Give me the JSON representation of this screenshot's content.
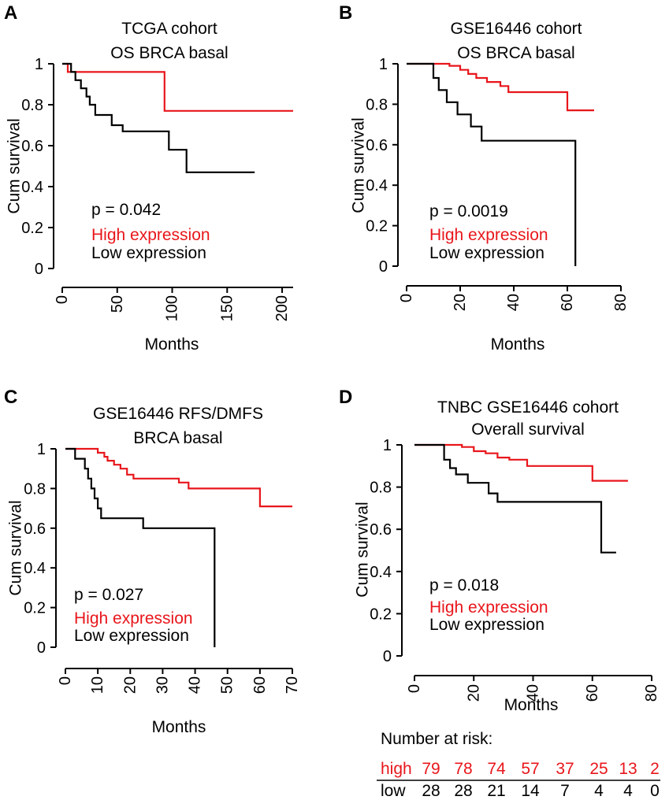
{
  "figure": {
    "risk_table": {
      "title": "Number at risk:",
      "high_label": "high",
      "low_label": "low",
      "high_values": [
        79,
        78,
        74,
        57,
        37,
        25,
        13,
        2
      ],
      "low_values": [
        28,
        28,
        21,
        14,
        7,
        4,
        4,
        0
      ]
    }
  },
  "colors": {
    "high": "#e8161b",
    "low": "#000000",
    "axis": "#000000"
  },
  "chart_data": [
    {
      "panel": "A",
      "type": "line",
      "title": [
        "TCGA cohort",
        "OS BRCA basal"
      ],
      "xlabel": "Months",
      "ylabel": "Cum survival",
      "xlim": [
        0,
        210
      ],
      "ylim": [
        0,
        1
      ],
      "xticks": [
        0,
        50,
        100,
        150,
        200
      ],
      "yticks": [
        0,
        0.2,
        0.4,
        0.6,
        0.8,
        1
      ],
      "ytick_labels": [
        "0",
        "0.2",
        "0.4",
        "0.6",
        "0.8",
        "1"
      ],
      "pvalue": "p = 0.042",
      "legend": [
        "High expression",
        "Low expression"
      ],
      "series": [
        {
          "name": "High expression",
          "x": [
            0,
            5,
            5,
            10,
            10,
            93,
            93,
            210
          ],
          "y": [
            1,
            1,
            0.96,
            0.96,
            0.96,
            0.96,
            0.77,
            0.77
          ]
        },
        {
          "name": "Low expression",
          "x": [
            0,
            8,
            8,
            12,
            12,
            17,
            17,
            22,
            22,
            25,
            25,
            30,
            30,
            45,
            45,
            55,
            55,
            97,
            97,
            113,
            113,
            175
          ],
          "y": [
            1,
            1,
            0.96,
            0.96,
            0.92,
            0.92,
            0.88,
            0.88,
            0.84,
            0.84,
            0.8,
            0.8,
            0.75,
            0.75,
            0.7,
            0.7,
            0.67,
            0.67,
            0.58,
            0.58,
            0.47,
            0.47
          ]
        }
      ]
    },
    {
      "panel": "B",
      "type": "line",
      "title": [
        "GSE16446 cohort",
        "OS BRCA basal"
      ],
      "xlabel": "Months",
      "ylabel": "Cum survival",
      "xlim": [
        0,
        80
      ],
      "ylim": [
        0,
        1
      ],
      "xticks": [
        0,
        20,
        40,
        60,
        80
      ],
      "yticks": [
        0,
        0.2,
        0.4,
        0.6,
        0.8,
        1
      ],
      "ytick_labels": [
        "0",
        "0.2",
        "0.4",
        "0.6",
        "0.8",
        "1"
      ],
      "pvalue": "p = 0.0019",
      "legend": [
        "High expression",
        "Low expression"
      ],
      "series": [
        {
          "name": "High expression",
          "x": [
            0,
            16,
            16,
            20,
            20,
            23,
            23,
            26,
            26,
            30,
            30,
            35,
            35,
            38,
            38,
            50,
            50,
            60,
            60,
            70
          ],
          "y": [
            1,
            1,
            0.99,
            0.99,
            0.97,
            0.97,
            0.95,
            0.95,
            0.93,
            0.93,
            0.91,
            0.91,
            0.89,
            0.89,
            0.86,
            0.86,
            0.86,
            0.86,
            0.77,
            0.77
          ]
        },
        {
          "name": "Low expression",
          "x": [
            0,
            10,
            10,
            12,
            12,
            15,
            15,
            19,
            19,
            24,
            24,
            28,
            28,
            63,
            63
          ],
          "y": [
            1,
            1,
            0.93,
            0.93,
            0.87,
            0.87,
            0.81,
            0.81,
            0.75,
            0.75,
            0.69,
            0.69,
            0.62,
            0.62,
            0
          ]
        }
      ]
    },
    {
      "panel": "C",
      "type": "line",
      "title": [
        "GSE16446  RFS/DMFS",
        "BRCA basal"
      ],
      "xlabel": "Months",
      "ylabel": "Cum survival",
      "xlim": [
        0,
        70
      ],
      "ylim": [
        0,
        1
      ],
      "xticks": [
        0,
        10,
        20,
        30,
        40,
        50,
        60,
        70
      ],
      "yticks": [
        0,
        0.2,
        0.4,
        0.6,
        0.8,
        1
      ],
      "ytick_labels": [
        "0",
        "0.2",
        "0.4",
        "0.6",
        "0.8",
        "1"
      ],
      "pvalue": "p = 0.027",
      "legend": [
        "High expression",
        "Low expression"
      ],
      "series": [
        {
          "name": "High expression",
          "x": [
            0,
            10,
            10,
            12,
            12,
            13,
            13,
            15,
            15,
            17,
            17,
            19,
            19,
            21,
            21,
            35,
            35,
            38,
            38,
            60,
            60,
            70
          ],
          "y": [
            1,
            1,
            0.98,
            0.98,
            0.96,
            0.96,
            0.94,
            0.94,
            0.92,
            0.92,
            0.9,
            0.9,
            0.87,
            0.87,
            0.85,
            0.85,
            0.83,
            0.83,
            0.8,
            0.8,
            0.71,
            0.71
          ]
        },
        {
          "name": "Low expression",
          "x": [
            0,
            3,
            3,
            6,
            6,
            7,
            7,
            8,
            8,
            9,
            9,
            10,
            10,
            11,
            11,
            24,
            24,
            46,
            46
          ],
          "y": [
            1,
            1,
            0.95,
            0.95,
            0.9,
            0.9,
            0.85,
            0.85,
            0.8,
            0.8,
            0.75,
            0.75,
            0.7,
            0.7,
            0.65,
            0.65,
            0.6,
            0.6,
            0
          ]
        }
      ]
    },
    {
      "panel": "D",
      "type": "line",
      "title": [
        "TNBC GSE16446 cohort",
        "Overall survival"
      ],
      "xlabel": "Months",
      "ylabel": "Cum survival",
      "xlim": [
        0,
        80
      ],
      "ylim": [
        0,
        1
      ],
      "xticks": [
        0,
        20,
        40,
        60,
        80
      ],
      "yticks": [
        0,
        0.2,
        0.4,
        0.6,
        0.8,
        1
      ],
      "ytick_labels": [
        "0",
        "0.2",
        "0.4",
        "0.6",
        "0.8",
        "1"
      ],
      "pvalue": "p = 0.018",
      "legend": [
        "High expression",
        "Low expression"
      ],
      "series": [
        {
          "name": "High expression",
          "x": [
            0,
            16,
            16,
            20,
            20,
            24,
            24,
            28,
            28,
            32,
            32,
            38,
            38,
            60,
            60,
            72
          ],
          "y": [
            1,
            1,
            0.99,
            0.99,
            0.97,
            0.97,
            0.96,
            0.96,
            0.94,
            0.94,
            0.93,
            0.93,
            0.9,
            0.9,
            0.83,
            0.83
          ]
        },
        {
          "name": "Low expression",
          "x": [
            0,
            10,
            10,
            12,
            12,
            14,
            14,
            18,
            18,
            25,
            25,
            28,
            28,
            63,
            63,
            68
          ],
          "y": [
            1,
            1,
            0.93,
            0.93,
            0.89,
            0.89,
            0.86,
            0.86,
            0.82,
            0.82,
            0.77,
            0.77,
            0.73,
            0.73,
            0.49,
            0.49
          ]
        }
      ]
    }
  ]
}
